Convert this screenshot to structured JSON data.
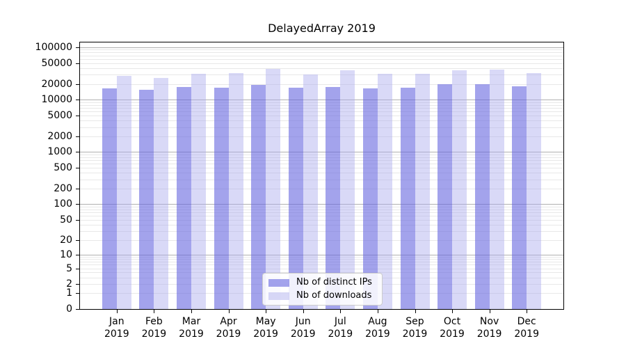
{
  "title": "DelayedArray 2019",
  "chart_data": {
    "type": "bar",
    "title": "DelayedArray 2019",
    "xlabel": "",
    "ylabel": "",
    "scale": "log1p",
    "grid": "major+minor",
    "legend_position": "bottom-center",
    "year": "2019",
    "categories": [
      "Jan",
      "Feb",
      "Mar",
      "Apr",
      "May",
      "Jun",
      "Jul",
      "Aug",
      "Sep",
      "Oct",
      "Nov",
      "Dec"
    ],
    "series": [
      {
        "name": "Nb of distinct IPs",
        "color": "#6666e0",
        "alpha": 0.6,
        "values": [
          16400,
          15400,
          17700,
          17200,
          19300,
          17200,
          17500,
          16300,
          16800,
          19500,
          19900,
          17900
        ]
      },
      {
        "name": "Nb of downloads",
        "color": "#aaaaee",
        "alpha": 0.45,
        "values": [
          28300,
          25900,
          31700,
          32100,
          38600,
          30700,
          36300,
          31700,
          31200,
          37000,
          37400,
          32200
        ]
      }
    ],
    "yticks": [
      0,
      1,
      2,
      5,
      10,
      20,
      50,
      100,
      200,
      500,
      1000,
      2000,
      5000,
      10000,
      20000,
      50000,
      100000
    ],
    "ylim": [
      0,
      124000
    ],
    "y_log_range": 5.093,
    "colors": {
      "grid_major": "#b0b0b0",
      "grid_minor": "#e8e8e8",
      "axis": "#000000",
      "legend_border": "#cccccc"
    }
  }
}
